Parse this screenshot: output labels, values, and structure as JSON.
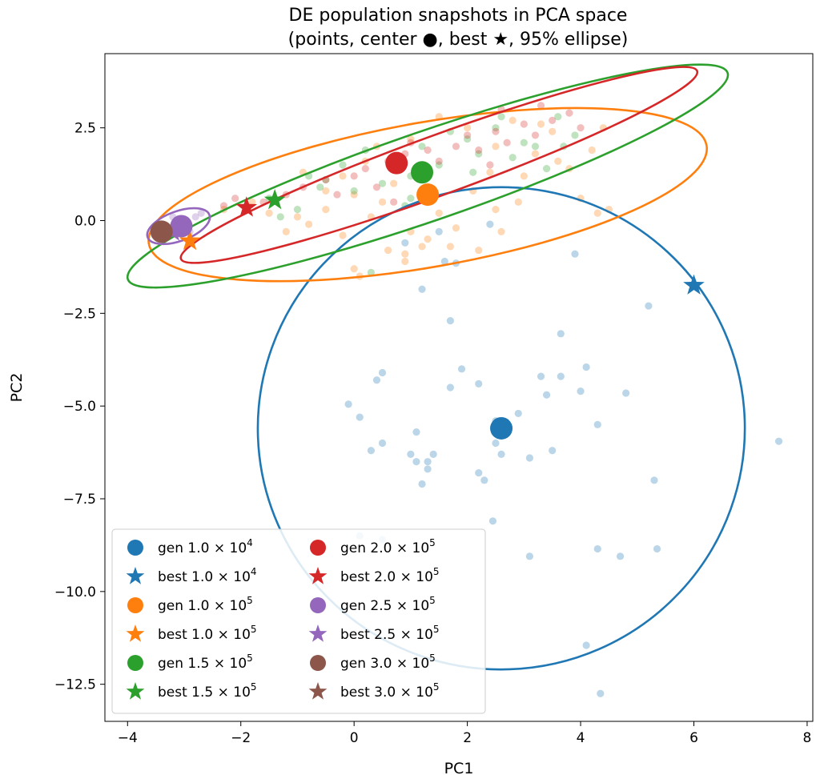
{
  "chart_data": {
    "type": "scatter",
    "title": "DE population snapshots in PCA space",
    "subtitle": "(points, center ●, best ★, 95% ellipse)",
    "xlabel": "PC1",
    "ylabel": "PC2",
    "xlim": [
      -4.4,
      8.1
    ],
    "ylim": [
      -13.5,
      4.5
    ],
    "xticks": [
      -4,
      -2,
      0,
      2,
      4,
      6,
      8
    ],
    "xtick_labels": [
      "−4",
      "−2",
      "0",
      "2",
      "4",
      "6",
      "8"
    ],
    "yticks": [
      2.5,
      0.0,
      -2.5,
      -5.0,
      -7.5,
      -10.0,
      -12.5
    ],
    "ytick_labels": [
      "2.5",
      "0.0",
      "−2.5",
      "−5.0",
      "−7.5",
      "−10.0",
      "−12.5"
    ],
    "grid": false,
    "legend_position": "lower-left",
    "series": [
      {
        "id": "g1e4",
        "color": "#1f77b4",
        "legend_center": {
          "pre": "gen 1.0 × 10",
          "exp": "4"
        },
        "legend_best": {
          "pre": "best 1.0 × 10",
          "exp": "4"
        },
        "center": [
          2.6,
          -5.6
        ],
        "best": [
          6.0,
          -1.75
        ],
        "ellipse": {
          "cx": 2.6,
          "cy": -5.6,
          "rx": 4.3,
          "ry": 6.5,
          "angle_deg": 2
        },
        "points": [
          [
            -0.1,
            -4.95
          ],
          [
            0.1,
            -5.3
          ],
          [
            0.5,
            -4.1
          ],
          [
            0.4,
            -4.3
          ],
          [
            0.3,
            -6.2
          ],
          [
            0.5,
            -6.0
          ],
          [
            1.1,
            -5.7
          ],
          [
            1.0,
            -6.3
          ],
          [
            1.1,
            -6.5
          ],
          [
            1.2,
            -7.1
          ],
          [
            1.3,
            -6.7
          ],
          [
            1.3,
            -6.5
          ],
          [
            1.4,
            -6.3
          ],
          [
            1.7,
            -4.5
          ],
          [
            1.9,
            -4.0
          ],
          [
            2.2,
            -4.4
          ],
          [
            2.2,
            -6.8
          ],
          [
            2.3,
            -7.0
          ],
          [
            2.5,
            -5.4
          ],
          [
            2.5,
            -6.0
          ],
          [
            2.6,
            -6.3
          ],
          [
            2.45,
            -8.1
          ],
          [
            2.9,
            -5.2
          ],
          [
            3.1,
            -6.4
          ],
          [
            3.3,
            -4.2
          ],
          [
            3.4,
            -4.7
          ],
          [
            3.5,
            -6.2
          ],
          [
            3.65,
            -3.05
          ],
          [
            3.65,
            -4.2
          ],
          [
            4.1,
            -3.95
          ],
          [
            4.0,
            -4.6
          ],
          [
            4.3,
            -5.5
          ],
          [
            4.8,
            -4.65
          ],
          [
            5.2,
            -2.3
          ],
          [
            5.3,
            -7.0
          ],
          [
            5.35,
            -8.85
          ],
          [
            7.5,
            -5.95
          ],
          [
            4.3,
            -8.85
          ],
          [
            4.7,
            -9.05
          ],
          [
            3.1,
            -9.05
          ],
          [
            0.1,
            -8.5
          ],
          [
            0.5,
            -8.6
          ],
          [
            4.1,
            -11.45
          ],
          [
            4.35,
            -12.75
          ],
          [
            3.9,
            -0.9
          ],
          [
            1.7,
            -2.7
          ],
          [
            1.6,
            -1.1
          ],
          [
            1.8,
            -1.15
          ],
          [
            1.5,
            -0.3
          ],
          [
            1.2,
            -1.85
          ],
          [
            0.9,
            -0.6
          ],
          [
            2.4,
            -0.1
          ]
        ]
      },
      {
        "id": "g1e5",
        "color": "#ff7f0e",
        "legend_center": {
          "pre": "gen 1.0 × 10",
          "exp": "5"
        },
        "legend_best": {
          "pre": "best 1.0 × 10",
          "exp": "5"
        },
        "center": [
          1.3,
          0.7
        ],
        "best": [
          -2.9,
          -0.55
        ],
        "ellipse": {
          "cx": 1.3,
          "cy": 0.7,
          "rx": 5.0,
          "ry": 1.95,
          "angle_deg": 10
        },
        "points": [
          [
            -1.5,
            0.2
          ],
          [
            -1.2,
            -0.3
          ],
          [
            -1.0,
            0.1
          ],
          [
            -0.8,
            -0.1
          ],
          [
            -0.5,
            0.3
          ],
          [
            -0.2,
            -0.4
          ],
          [
            0.0,
            -1.3
          ],
          [
            0.1,
            -1.5
          ],
          [
            0.3,
            0.1
          ],
          [
            0.5,
            0.5
          ],
          [
            0.6,
            -0.8
          ],
          [
            0.9,
            -1.1
          ],
          [
            0.9,
            -0.9
          ],
          [
            1.0,
            -0.3
          ],
          [
            1.2,
            -0.7
          ],
          [
            1.3,
            -0.5
          ],
          [
            1.5,
            0.2
          ],
          [
            1.8,
            -0.2
          ],
          [
            2.1,
            0.8
          ],
          [
            2.2,
            -0.8
          ],
          [
            2.5,
            0.3
          ],
          [
            2.6,
            -0.3
          ],
          [
            2.9,
            0.5
          ],
          [
            3.0,
            1.2
          ],
          [
            3.2,
            1.8
          ],
          [
            3.6,
            1.6
          ],
          [
            3.8,
            1.4
          ],
          [
            4.0,
            0.6
          ],
          [
            4.3,
            0.2
          ],
          [
            -0.5,
            0.8
          ],
          [
            -0.2,
            1.2
          ],
          [
            0.2,
            1.6
          ],
          [
            0.4,
            2.0
          ],
          [
            0.7,
            1.0
          ],
          [
            1.0,
            2.2
          ],
          [
            1.5,
            2.8
          ],
          [
            2.0,
            2.5
          ],
          [
            2.5,
            2.0
          ],
          [
            2.8,
            2.7
          ],
          [
            3.3,
            2.6
          ],
          [
            -1.8,
            0.5
          ],
          [
            -2.3,
            0.3
          ],
          [
            -0.9,
            1.3
          ],
          [
            0.0,
            0.7
          ],
          [
            1.7,
            -0.7
          ],
          [
            2.4,
            1.3
          ],
          [
            3.5,
            2.4
          ],
          [
            4.5,
            0.3
          ],
          [
            4.4,
            2.5
          ],
          [
            4.2,
            1.9
          ]
        ]
      },
      {
        "id": "g15e5",
        "color": "#2ca02c",
        "legend_center": {
          "pre": "gen 1.5 × 10",
          "exp": "5"
        },
        "legend_best": {
          "pre": "best 1.5 × 10",
          "exp": "5"
        },
        "center": [
          1.2,
          1.3
        ],
        "best": [
          -1.4,
          0.55
        ],
        "ellipse": {
          "cx": 1.3,
          "cy": 1.2,
          "rx": 5.6,
          "ry": 1.2,
          "angle_deg": 19
        },
        "points": [
          [
            -1.5,
            0.6
          ],
          [
            -1.3,
            0.1
          ],
          [
            -1.0,
            0.3
          ],
          [
            -0.6,
            0.9
          ],
          [
            -0.5,
            1.1
          ],
          [
            -0.2,
            1.5
          ],
          [
            0.0,
            0.8
          ],
          [
            0.2,
            1.9
          ],
          [
            0.5,
            1.0
          ],
          [
            0.8,
            1.6
          ],
          [
            1.0,
            1.2
          ],
          [
            1.2,
            2.0
          ],
          [
            1.5,
            1.5
          ],
          [
            1.7,
            2.4
          ],
          [
            2.0,
            2.2
          ],
          [
            2.2,
            1.8
          ],
          [
            2.5,
            2.5
          ],
          [
            2.8,
            1.7
          ],
          [
            3.0,
            2.1
          ],
          [
            3.2,
            2.0
          ],
          [
            3.4,
            1.4
          ],
          [
            3.7,
            2.0
          ],
          [
            3.9,
            2.3
          ],
          [
            0.3,
            -1.4
          ],
          [
            1.0,
            0.6
          ],
          [
            2.6,
            2.8
          ],
          [
            3.6,
            2.8
          ],
          [
            -0.8,
            1.2
          ],
          [
            0.9,
            0.4
          ],
          [
            2.1,
            1.3
          ]
        ]
      },
      {
        "id": "g2e5",
        "color": "#d62728",
        "legend_center": {
          "pre": "gen 2.0 × 10",
          "exp": "5"
        },
        "legend_best": {
          "pre": "best 2.0 × 10",
          "exp": "5"
        },
        "center": [
          0.75,
          1.55
        ],
        "best": [
          -1.9,
          0.35
        ],
        "ellipse": {
          "cx": 1.5,
          "cy": 1.5,
          "rx": 4.85,
          "ry": 0.8,
          "angle_deg": 20
        },
        "points": [
          [
            -2.3,
            0.4
          ],
          [
            -2.1,
            0.6
          ],
          [
            -1.6,
            0.5
          ],
          [
            -1.2,
            0.7
          ],
          [
            -0.9,
            0.9
          ],
          [
            -0.5,
            1.1
          ],
          [
            -0.3,
            0.7
          ],
          [
            0.0,
            1.2
          ],
          [
            0.2,
            1.4
          ],
          [
            0.4,
            0.9
          ],
          [
            0.6,
            1.6
          ],
          [
            0.9,
            1.8
          ],
          [
            1.1,
            1.3
          ],
          [
            1.3,
            1.9
          ],
          [
            1.5,
            1.6
          ],
          [
            1.8,
            2.0
          ],
          [
            2.0,
            2.3
          ],
          [
            2.2,
            1.9
          ],
          [
            2.5,
            2.4
          ],
          [
            2.7,
            2.1
          ],
          [
            3.0,
            2.6
          ],
          [
            3.2,
            2.3
          ],
          [
            3.5,
            2.7
          ],
          [
            3.8,
            2.9
          ],
          [
            4.0,
            2.5
          ],
          [
            2.6,
            3.0
          ],
          [
            3.3,
            3.1
          ],
          [
            1.0,
            2.1
          ],
          [
            0.7,
            0.5
          ],
          [
            2.4,
            1.5
          ]
        ]
      },
      {
        "id": "g25e5",
        "color": "#9467bd",
        "legend_center": {
          "pre": "gen 2.5 × 10",
          "exp": "5"
        },
        "legend_best": {
          "pre": "best 2.5 × 10",
          "exp": "5"
        },
        "center": [
          -3.05,
          -0.15
        ],
        "best": [
          -3.2,
          -0.3
        ],
        "ellipse": {
          "cx": -3.1,
          "cy": -0.15,
          "rx": 0.58,
          "ry": 0.4,
          "angle_deg": 20
        },
        "points": [
          [
            -3.3,
            -0.2
          ],
          [
            -3.0,
            0.0
          ],
          [
            -2.9,
            -0.3
          ],
          [
            -2.8,
            0.1
          ],
          [
            -3.2,
            0.1
          ],
          [
            -2.7,
            0.2
          ],
          [
            -3.4,
            -0.4
          ]
        ]
      },
      {
        "id": "g3e5",
        "color": "#8c564b",
        "legend_center": {
          "pre": "gen 3.0 × 10",
          "exp": "5"
        },
        "legend_best": {
          "pre": "best 3.0 × 10",
          "exp": "5"
        },
        "center": [
          -3.4,
          -0.3
        ],
        "best": [
          -3.4,
          -0.3
        ],
        "ellipse": null,
        "points": []
      }
    ]
  }
}
